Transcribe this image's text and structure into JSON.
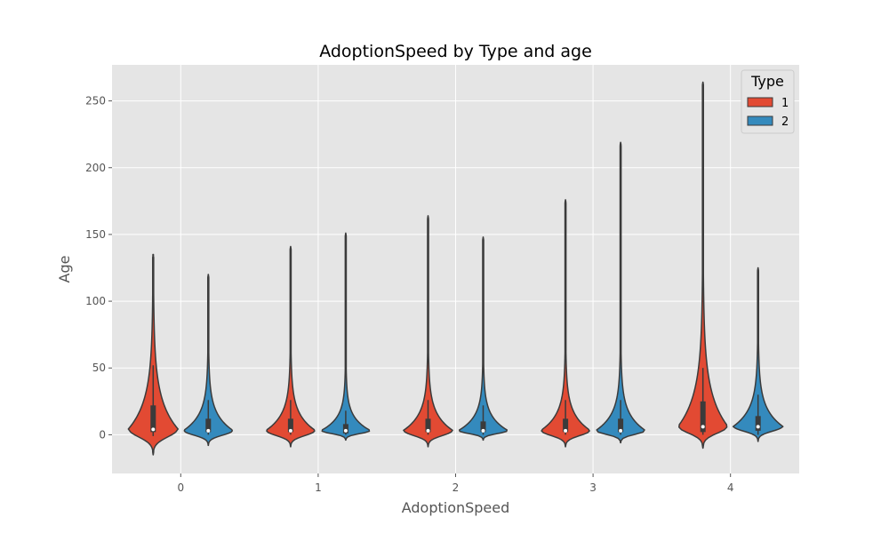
{
  "chart_data": {
    "type": "violin",
    "title": "AdoptionSpeed by Type and age",
    "xlabel": "AdoptionSpeed",
    "ylabel": "Age",
    "categories": [
      "0",
      "1",
      "2",
      "3",
      "4"
    ],
    "ylim": [
      -29,
      277
    ],
    "yticks": [
      0,
      50,
      100,
      150,
      200,
      250
    ],
    "grid": true,
    "legend": {
      "title": "Type",
      "position": "top-right"
    },
    "colors": {
      "plot_bg": "#e5e5e5",
      "grid": "#ffffff",
      "outline": "#3b3b3b"
    },
    "series": [
      {
        "name": "1",
        "color": "#e24a33",
        "violins": [
          {
            "min": -15,
            "max": 135,
            "q1": 2,
            "median": 4,
            "q3": 22,
            "whisker_lo": -1,
            "whisker_hi": 52
          },
          {
            "min": -9,
            "max": 141,
            "q1": 2,
            "median": 3,
            "q3": 12,
            "whisker_lo": 0,
            "whisker_hi": 26
          },
          {
            "min": -9,
            "max": 164,
            "q1": 2,
            "median": 3,
            "q3": 12,
            "whisker_lo": 0,
            "whisker_hi": 26
          },
          {
            "min": -9,
            "max": 176,
            "q1": 2,
            "median": 3,
            "q3": 12,
            "whisker_lo": 0,
            "whisker_hi": 26
          },
          {
            "min": -10,
            "max": 264,
            "q1": 2,
            "median": 6,
            "q3": 25,
            "whisker_lo": 0,
            "whisker_hi": 50
          }
        ]
      },
      {
        "name": "2",
        "color": "#348abd",
        "violins": [
          {
            "min": -8,
            "max": 120,
            "q1": 2,
            "median": 3,
            "q3": 12,
            "whisker_lo": 0,
            "whisker_hi": 26
          },
          {
            "min": -4,
            "max": 151,
            "q1": 1,
            "median": 3,
            "q3": 8,
            "whisker_lo": 0,
            "whisker_hi": 18
          },
          {
            "min": -4,
            "max": 148,
            "q1": 2,
            "median": 3,
            "q3": 10,
            "whisker_lo": 0,
            "whisker_hi": 22
          },
          {
            "min": -6,
            "max": 219,
            "q1": 2,
            "median": 3,
            "q3": 12,
            "whisker_lo": 0,
            "whisker_hi": 26
          },
          {
            "min": -5,
            "max": 125,
            "q1": 3,
            "median": 6,
            "q3": 14,
            "whisker_lo": 0,
            "whisker_hi": 30
          }
        ]
      }
    ]
  }
}
